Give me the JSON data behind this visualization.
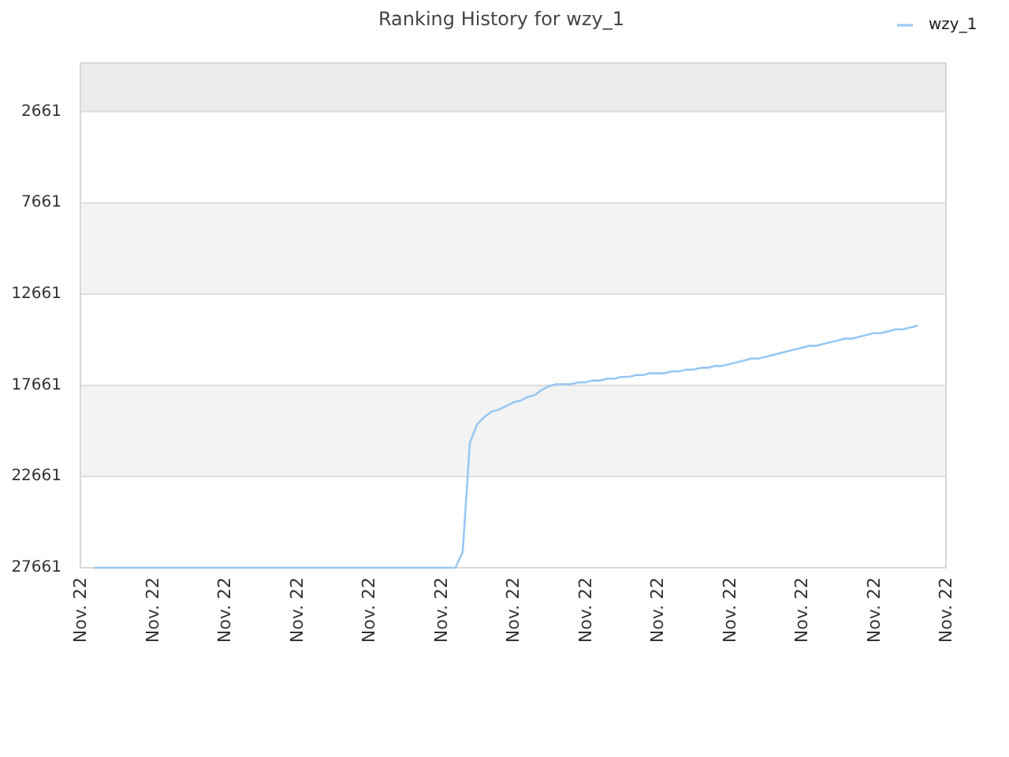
{
  "chart_data": {
    "type": "line",
    "title": "Ranking History for wzy_1",
    "categories": [
      "Nov. 22",
      null,
      null,
      null,
      null,
      null,
      null,
      null,
      null,
      null,
      "Nov. 22",
      null,
      null,
      null,
      null,
      null,
      null,
      null,
      null,
      null,
      "Nov. 22",
      null,
      null,
      null,
      null,
      null,
      null,
      null,
      null,
      null,
      "Nov. 22",
      null,
      null,
      null,
      null,
      null,
      null,
      null,
      null,
      null,
      "Nov. 22",
      null,
      null,
      null,
      null,
      null,
      null,
      null,
      null,
      null,
      "Nov. 22",
      null,
      null,
      null,
      null,
      null,
      null,
      null,
      null,
      null,
      "Nov. 22",
      null,
      null,
      null,
      null,
      null,
      null,
      null,
      null,
      null,
      "Nov. 22",
      null,
      null,
      null,
      null,
      null,
      null,
      null,
      null,
      null,
      "Nov. 22",
      null,
      null,
      null,
      null,
      null,
      null,
      null,
      null,
      null,
      "Nov. 22",
      null,
      null,
      null,
      null,
      null,
      null,
      null,
      null,
      null,
      "Nov. 22",
      null,
      null,
      null,
      null,
      null,
      null,
      null,
      null,
      null,
      "Nov. 22",
      null,
      null,
      null,
      null,
      null,
      null,
      null,
      null,
      null,
      "Nov. 22"
    ],
    "ylim": [
      27661,
      0
    ],
    "yticks": [
      2661,
      7661,
      12661,
      17661,
      22661,
      27661
    ],
    "grid": "y",
    "legend": "top right",
    "bands": [
      {
        "axis": "y",
        "from": 0,
        "to": 2661,
        "color": "#ececec"
      },
      {
        "axis": "y",
        "from": 7661,
        "to": 12661,
        "color": "#f3f3f3"
      },
      {
        "axis": "y",
        "from": 17661,
        "to": 22661,
        "color": "#f3f3f3"
      }
    ],
    "series": [
      {
        "name": "wzy_1",
        "color": "#99c8f2",
        "values": [
          null,
          null,
          27661,
          27661,
          27661,
          27661,
          27661,
          27661,
          27661,
          27661,
          27661,
          27661,
          27661,
          27661,
          27661,
          27661,
          27661,
          27661,
          27661,
          27661,
          27661,
          27661,
          27661,
          27661,
          27661,
          27661,
          27661,
          27661,
          27661,
          27661,
          27661,
          27661,
          27661,
          27661,
          27661,
          27661,
          27661,
          27661,
          27661,
          27661,
          27661,
          27661,
          27661,
          27661,
          27661,
          27661,
          27661,
          27661,
          27661,
          27661,
          27661,
          27661,
          27661,
          26800,
          20800,
          19800,
          19400,
          19100,
          19000,
          18800,
          18600,
          18500,
          18300,
          18200,
          17900,
          17700,
          17600,
          17600,
          17600,
          17500,
          17500,
          17400,
          17400,
          17300,
          17300,
          17200,
          17200,
          17100,
          17100,
          17000,
          17000,
          17000,
          16900,
          16900,
          16800,
          16800,
          16700,
          16700,
          16600,
          16600,
          16500,
          16400,
          16300,
          16200,
          16200,
          16100,
          16000,
          15900,
          15800,
          15700,
          15600,
          15500,
          15500,
          15400,
          15300,
          15200,
          15100,
          15100,
          15000,
          14900,
          14800,
          14800,
          14700,
          14600,
          14600,
          14500,
          14400,
          null,
          null,
          null,
          null
        ]
      }
    ]
  }
}
